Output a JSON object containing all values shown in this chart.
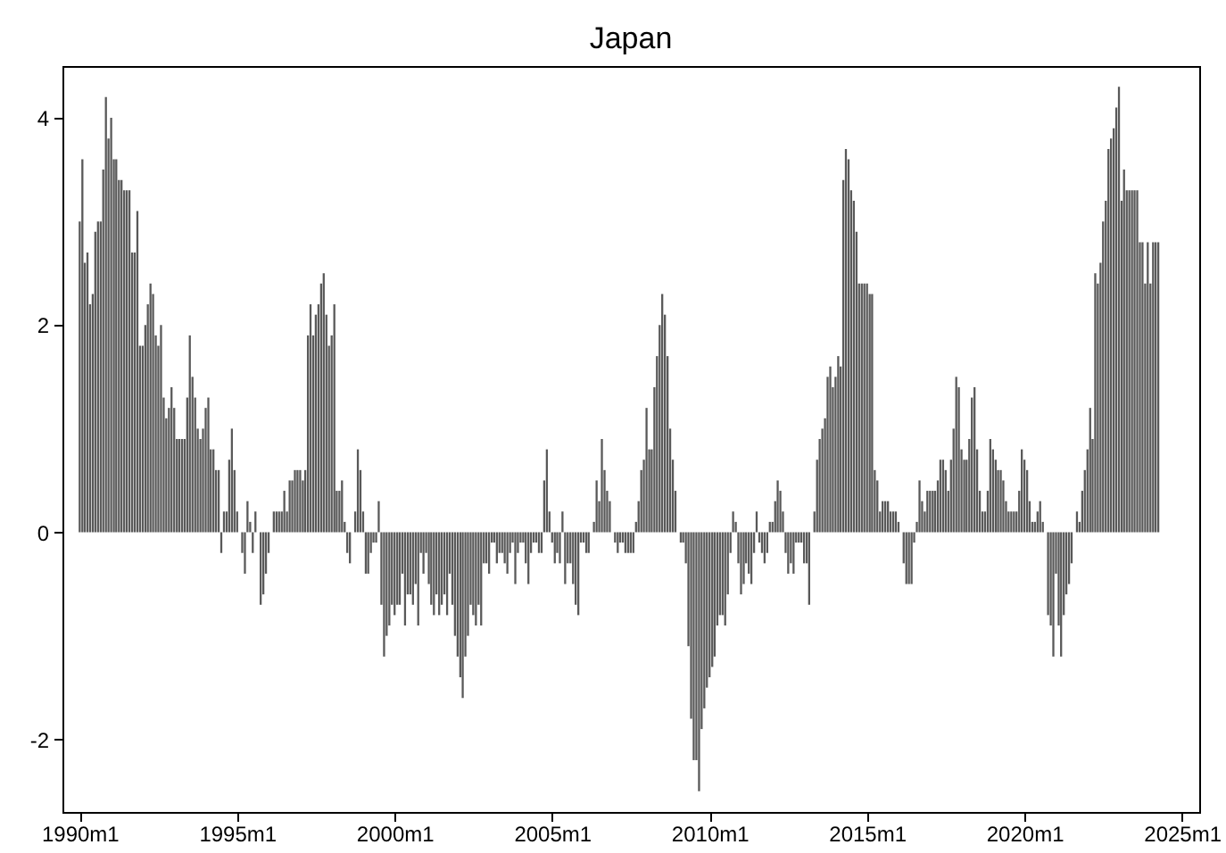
{
  "chart_data": {
    "type": "bar",
    "title": "Japan",
    "color": "#595959",
    "grid": false,
    "xlim": [
      "1989-06-15",
      "2025-07-20"
    ],
    "xticks": [
      {
        "value": "1990-01",
        "label": "1990m1"
      },
      {
        "value": "1995-01",
        "label": "1995m1"
      },
      {
        "value": "2000-01",
        "label": "2000m1"
      },
      {
        "value": "2005-01",
        "label": "2005m1"
      },
      {
        "value": "2010-01",
        "label": "2010m1"
      },
      {
        "value": "2015-01",
        "label": "2015m1"
      },
      {
        "value": "2020-01",
        "label": "2020m1"
      },
      {
        "value": "2025-01",
        "label": "2025m1"
      }
    ],
    "ylim": [
      -2.7,
      4.5
    ],
    "yticks": [
      -2,
      0,
      2,
      4
    ],
    "x": [
      "1990-01",
      "1990-02",
      "1990-03",
      "1990-04",
      "1990-05",
      "1990-06",
      "1990-07",
      "1990-08",
      "1990-09",
      "1990-10",
      "1990-11",
      "1990-12",
      "1991-01",
      "1991-02",
      "1991-03",
      "1991-04",
      "1991-05",
      "1991-06",
      "1991-07",
      "1991-08",
      "1991-09",
      "1991-10",
      "1991-11",
      "1991-12",
      "1992-01",
      "1992-02",
      "1992-03",
      "1992-04",
      "1992-05",
      "1992-06",
      "1992-07",
      "1992-08",
      "1992-09",
      "1992-10",
      "1992-11",
      "1992-12",
      "1993-01",
      "1993-02",
      "1993-03",
      "1993-04",
      "1993-05",
      "1993-06",
      "1993-07",
      "1993-08",
      "1993-09",
      "1993-10",
      "1993-11",
      "1993-12",
      "1994-01",
      "1994-02",
      "1994-03",
      "1994-04",
      "1994-05",
      "1994-06",
      "1994-07",
      "1994-08",
      "1994-09",
      "1994-10",
      "1994-11",
      "1994-12",
      "1995-01",
      "1995-02",
      "1995-03",
      "1995-04",
      "1995-05",
      "1995-06",
      "1995-07",
      "1995-08",
      "1995-09",
      "1995-10",
      "1995-11",
      "1995-12",
      "1996-01",
      "1996-02",
      "1996-03",
      "1996-04",
      "1996-05",
      "1996-06",
      "1996-07",
      "1996-08",
      "1996-09",
      "1996-10",
      "1996-11",
      "1996-12",
      "1997-01",
      "1997-02",
      "1997-03",
      "1997-04",
      "1997-05",
      "1997-06",
      "1997-07",
      "1997-08",
      "1997-09",
      "1997-10",
      "1997-11",
      "1997-12",
      "1998-01",
      "1998-02",
      "1998-03",
      "1998-04",
      "1998-05",
      "1998-06",
      "1998-07",
      "1998-08",
      "1998-09",
      "1998-10",
      "1998-11",
      "1998-12",
      "1999-01",
      "1999-02",
      "1999-03",
      "1999-04",
      "1999-05",
      "1999-06",
      "1999-07",
      "1999-08",
      "1999-09",
      "1999-10",
      "1999-11",
      "1999-12",
      "2000-01",
      "2000-02",
      "2000-03",
      "2000-04",
      "2000-05",
      "2000-06",
      "2000-07",
      "2000-08",
      "2000-09",
      "2000-10",
      "2000-11",
      "2000-12",
      "2001-01",
      "2001-02",
      "2001-03",
      "2001-04",
      "2001-05",
      "2001-06",
      "2001-07",
      "2001-08",
      "2001-09",
      "2001-10",
      "2001-11",
      "2001-12",
      "2002-01",
      "2002-02",
      "2002-03",
      "2002-04",
      "2002-05",
      "2002-06",
      "2002-07",
      "2002-08",
      "2002-09",
      "2002-10",
      "2002-11",
      "2002-12",
      "2003-01",
      "2003-02",
      "2003-03",
      "2003-04",
      "2003-05",
      "2003-06",
      "2003-07",
      "2003-08",
      "2003-09",
      "2003-10",
      "2003-11",
      "2003-12",
      "2004-01",
      "2004-02",
      "2004-03",
      "2004-04",
      "2004-05",
      "2004-06",
      "2004-07",
      "2004-08",
      "2004-09",
      "2004-10",
      "2004-11",
      "2004-12",
      "2005-01",
      "2005-02",
      "2005-03",
      "2005-04",
      "2005-05",
      "2005-06",
      "2005-07",
      "2005-08",
      "2005-09",
      "2005-10",
      "2005-11",
      "2005-12",
      "2006-01",
      "2006-02",
      "2006-03",
      "2006-04",
      "2006-05",
      "2006-06",
      "2006-07",
      "2006-08",
      "2006-09",
      "2006-10",
      "2006-11",
      "2006-12",
      "2007-01",
      "2007-02",
      "2007-03",
      "2007-04",
      "2007-05",
      "2007-06",
      "2007-07",
      "2007-08",
      "2007-09",
      "2007-10",
      "2007-11",
      "2007-12",
      "2008-01",
      "2008-02",
      "2008-03",
      "2008-04",
      "2008-05",
      "2008-06",
      "2008-07",
      "2008-08",
      "2008-09",
      "2008-10",
      "2008-11",
      "2008-12",
      "2009-01",
      "2009-02",
      "2009-03",
      "2009-04",
      "2009-05",
      "2009-06",
      "2009-07",
      "2009-08",
      "2009-09",
      "2009-10",
      "2009-11",
      "2009-12",
      "2010-01",
      "2010-02",
      "2010-03",
      "2010-04",
      "2010-05",
      "2010-06",
      "2010-07",
      "2010-08",
      "2010-09",
      "2010-10",
      "2010-11",
      "2010-12",
      "2011-01",
      "2011-02",
      "2011-03",
      "2011-04",
      "2011-05",
      "2011-06",
      "2011-07",
      "2011-08",
      "2011-09",
      "2011-10",
      "2011-11",
      "2011-12",
      "2012-01",
      "2012-02",
      "2012-03",
      "2012-04",
      "2012-05",
      "2012-06",
      "2012-07",
      "2012-08",
      "2012-09",
      "2012-10",
      "2012-11",
      "2012-12",
      "2013-01",
      "2013-02",
      "2013-03",
      "2013-04",
      "2013-05",
      "2013-06",
      "2013-07",
      "2013-08",
      "2013-09",
      "2013-10",
      "2013-11",
      "2013-12",
      "2014-01",
      "2014-02",
      "2014-03",
      "2014-04",
      "2014-05",
      "2014-06",
      "2014-07",
      "2014-08",
      "2014-09",
      "2014-10",
      "2014-11",
      "2014-12",
      "2015-01",
      "2015-02",
      "2015-03",
      "2015-04",
      "2015-05",
      "2015-06",
      "2015-07",
      "2015-08",
      "2015-09",
      "2015-10",
      "2015-11",
      "2015-12",
      "2016-01",
      "2016-02",
      "2016-03",
      "2016-04",
      "2016-05",
      "2016-06",
      "2016-07",
      "2016-08",
      "2016-09",
      "2016-10",
      "2016-11",
      "2016-12",
      "2017-01",
      "2017-02",
      "2017-03",
      "2017-04",
      "2017-05",
      "2017-06",
      "2017-07",
      "2017-08",
      "2017-09",
      "2017-10",
      "2017-11",
      "2017-12",
      "2018-01",
      "2018-02",
      "2018-03",
      "2018-04",
      "2018-05",
      "2018-06",
      "2018-07",
      "2018-08",
      "2018-09",
      "2018-10",
      "2018-11",
      "2018-12",
      "2019-01",
      "2019-02",
      "2019-03",
      "2019-04",
      "2019-05",
      "2019-06",
      "2019-07",
      "2019-08",
      "2019-09",
      "2019-10",
      "2019-11",
      "2019-12",
      "2020-01",
      "2020-02",
      "2020-03",
      "2020-04",
      "2020-05",
      "2020-06",
      "2020-07",
      "2020-08",
      "2020-09",
      "2020-10",
      "2020-11",
      "2020-12",
      "2021-01",
      "2021-02",
      "2021-03",
      "2021-04",
      "2021-05",
      "2021-06",
      "2021-07",
      "2021-08",
      "2021-09",
      "2021-10",
      "2021-11",
      "2021-12",
      "2022-01",
      "2022-02",
      "2022-03",
      "2022-04",
      "2022-05",
      "2022-06",
      "2022-07",
      "2022-08",
      "2022-09",
      "2022-10",
      "2022-11",
      "2022-12",
      "2023-01",
      "2023-02",
      "2023-03",
      "2023-04",
      "2023-05",
      "2023-06",
      "2023-07",
      "2023-08",
      "2023-09",
      "2023-10",
      "2023-11",
      "2023-12",
      "2024-01",
      "2024-02",
      "2024-03",
      "2024-04"
    ],
    "values": [
      3.0,
      3.6,
      2.6,
      2.7,
      2.2,
      2.3,
      2.9,
      3.0,
      3.0,
      3.5,
      4.2,
      3.8,
      4.0,
      3.6,
      3.6,
      3.4,
      3.4,
      3.3,
      3.3,
      3.3,
      2.7,
      2.7,
      3.1,
      1.8,
      1.8,
      2.0,
      2.2,
      2.4,
      2.3,
      1.9,
      1.8,
      2.0,
      1.3,
      1.1,
      1.2,
      1.4,
      1.2,
      0.9,
      0.9,
      0.9,
      0.9,
      1.3,
      1.9,
      1.5,
      1.3,
      1.0,
      0.9,
      1.0,
      1.2,
      1.3,
      0.8,
      0.8,
      0.6,
      0.6,
      -0.2,
      0.2,
      0.2,
      0.7,
      1.0,
      0.6,
      0.2,
      0.0,
      -0.2,
      -0.4,
      0.3,
      0.1,
      -0.2,
      0.2,
      0.0,
      -0.7,
      -0.6,
      -0.4,
      -0.2,
      0.0,
      0.2,
      0.2,
      0.2,
      0.2,
      0.4,
      0.2,
      0.5,
      0.5,
      0.6,
      0.6,
      0.6,
      0.5,
      0.6,
      1.9,
      2.2,
      1.9,
      2.1,
      2.2,
      2.4,
      2.5,
      2.1,
      1.8,
      1.9,
      2.2,
      0.4,
      0.4,
      0.5,
      0.1,
      -0.2,
      -0.3,
      0.0,
      0.2,
      0.8,
      0.6,
      0.2,
      -0.4,
      -0.4,
      -0.2,
      -0.1,
      -0.1,
      0.3,
      -0.7,
      -1.2,
      -1.0,
      -0.9,
      -0.7,
      -0.8,
      -0.7,
      -0.7,
      -0.4,
      -0.9,
      -0.6,
      -0.6,
      -0.7,
      -0.5,
      -0.9,
      -0.2,
      -0.4,
      -0.2,
      -0.5,
      -0.7,
      -0.8,
      -0.6,
      -0.8,
      -0.7,
      -0.6,
      -0.8,
      -0.4,
      -0.7,
      -1.0,
      -1.2,
      -1.4,
      -1.6,
      -1.2,
      -1.0,
      -0.7,
      -0.8,
      -0.9,
      -0.7,
      -0.9,
      -0.3,
      -0.3,
      -0.4,
      -0.1,
      -0.1,
      -0.3,
      -0.2,
      -0.2,
      -0.3,
      -0.4,
      -0.2,
      -0.1,
      -0.5,
      -0.2,
      -0.1,
      -0.1,
      -0.3,
      -0.5,
      -0.2,
      -0.1,
      -0.1,
      -0.2,
      -0.2,
      0.5,
      0.8,
      0.2,
      -0.1,
      -0.3,
      -0.2,
      -0.3,
      0.2,
      -0.5,
      -0.3,
      -0.3,
      -0.5,
      -0.7,
      -0.8,
      -0.1,
      -0.1,
      -0.2,
      -0.2,
      0.0,
      0.1,
      0.5,
      0.3,
      0.9,
      0.6,
      0.4,
      0.3,
      0.0,
      -0.1,
      -0.2,
      -0.1,
      -0.1,
      -0.2,
      -0.2,
      -0.2,
      -0.2,
      0.1,
      0.3,
      0.6,
      0.7,
      1.2,
      0.8,
      0.8,
      1.4,
      1.7,
      2.0,
      2.3,
      2.1,
      1.7,
      1.0,
      0.7,
      0.4,
      0.0,
      -0.1,
      -0.1,
      -0.3,
      -1.1,
      -1.8,
      -2.2,
      -2.2,
      -2.5,
      -1.9,
      -1.7,
      -1.5,
      -1.4,
      -1.3,
      -1.2,
      -0.9,
      -0.8,
      -0.8,
      -0.9,
      -0.6,
      -0.2,
      0.2,
      0.1,
      -0.3,
      -0.6,
      -0.5,
      -0.3,
      -0.4,
      -0.5,
      -0.2,
      0.2,
      -0.1,
      -0.2,
      -0.3,
      -0.2,
      0.1,
      0.1,
      0.3,
      0.5,
      0.4,
      0.2,
      -0.2,
      -0.4,
      -0.3,
      -0.4,
      -0.1,
      -0.1,
      -0.1,
      -0.3,
      -0.3,
      -0.7,
      0.0,
      0.2,
      0.7,
      0.9,
      1.0,
      1.1,
      1.5,
      1.6,
      1.4,
      1.5,
      1.7,
      1.6,
      3.4,
      3.7,
      3.6,
      3.3,
      3.2,
      2.9,
      2.4,
      2.4,
      2.4,
      2.4,
      2.3,
      2.3,
      0.6,
      0.5,
      0.2,
      0.3,
      0.3,
      0.3,
      0.2,
      0.2,
      0.2,
      0.1,
      0.0,
      -0.3,
      -0.5,
      -0.5,
      -0.5,
      -0.1,
      0.1,
      0.5,
      0.3,
      0.2,
      0.4,
      0.4,
      0.4,
      0.4,
      0.5,
      0.7,
      0.7,
      0.6,
      0.4,
      0.7,
      1.0,
      1.5,
      1.4,
      0.8,
      0.7,
      0.7,
      0.9,
      1.3,
      1.4,
      0.8,
      0.4,
      0.2,
      0.2,
      0.4,
      0.9,
      0.8,
      0.7,
      0.6,
      0.6,
      0.5,
      0.3,
      0.2,
      0.2,
      0.2,
      0.2,
      0.4,
      0.8,
      0.7,
      0.6,
      0.3,
      0.1,
      0.1,
      0.2,
      0.3,
      0.1,
      0.0,
      -0.8,
      -0.9,
      -1.2,
      -0.4,
      -0.9,
      -1.2,
      -0.8,
      -0.6,
      -0.5,
      -0.3,
      0.0,
      0.2,
      0.1,
      0.4,
      0.6,
      0.8,
      1.2,
      0.9,
      2.5,
      2.4,
      2.6,
      3.0,
      3.2,
      3.7,
      3.8,
      3.9,
      4.1,
      4.3,
      3.2,
      3.5,
      3.3,
      3.3,
      3.3,
      3.3,
      3.3,
      2.8,
      2.8,
      2.4,
      2.8,
      2.4,
      2.8,
      2.8,
      2.8
    ]
  }
}
